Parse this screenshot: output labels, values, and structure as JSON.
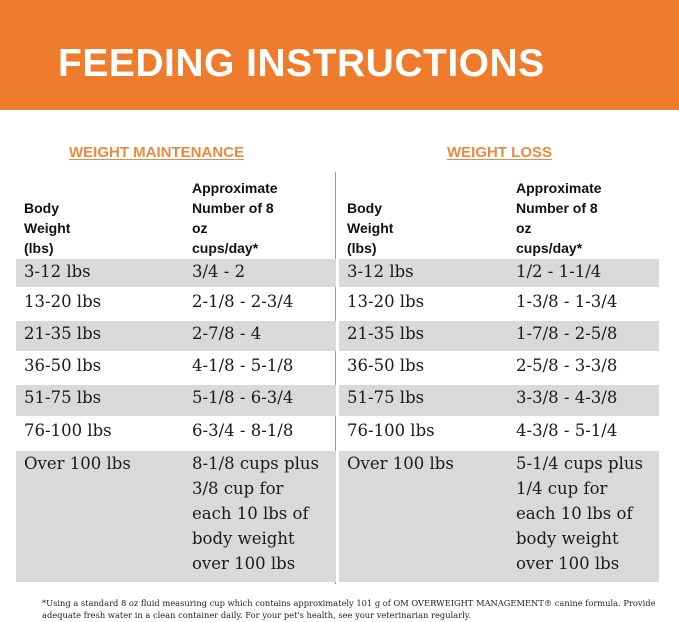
{
  "header": {
    "title": "FEEDING INSTRUCTIONS"
  },
  "colors": {
    "banner": "#EF7C2C",
    "section_title": "#E98A3F",
    "row_shade": "#d9d9d9"
  },
  "sections": [
    {
      "title": "WEIGHT MAINTENANCE",
      "col1_header": "Body Weight (lbs)",
      "col2_header": [
        "Approximate",
        "Number of 8 oz",
        "cups/day*"
      ],
      "rows": [
        {
          "weight": "3-12 lbs",
          "cups": [
            "3/4 - 2"
          ]
        },
        {
          "weight": "13-20 lbs",
          "cups": [
            "2-1/8 - 2-3/4"
          ]
        },
        {
          "weight": "21-35 lbs",
          "cups": [
            "2-7/8 - 4"
          ]
        },
        {
          "weight": "36-50 lbs",
          "cups": [
            "4-1/8 - 5-1/8"
          ]
        },
        {
          "weight": "51-75 lbs",
          "cups": [
            "5-1/8 - 6-3/4"
          ]
        },
        {
          "weight": "76-100 lbs",
          "cups": [
            "6-3/4 - 8-1/8"
          ]
        },
        {
          "weight": "Over 100 lbs",
          "cups": [
            "8-1/8 cups plus",
            "3/8 cup for",
            "each 10 lbs of",
            "body weight",
            "over 100 lbs"
          ]
        }
      ]
    },
    {
      "title": "WEIGHT LOSS",
      "col1_header": "Body Weight (lbs)",
      "col2_header": [
        "Approximate",
        "Number of 8 oz",
        "cups/day*"
      ],
      "rows": [
        {
          "weight": "3-12 lbs",
          "cups": [
            "1/2 - 1-1/4"
          ]
        },
        {
          "weight": "13-20 lbs",
          "cups": [
            "1-3/8 - 1-3/4"
          ]
        },
        {
          "weight": "21-35 lbs",
          "cups": [
            "1-7/8 - 2-5/8"
          ]
        },
        {
          "weight": "36-50 lbs",
          "cups": [
            "2-5/8 - 3-3/8"
          ]
        },
        {
          "weight": "51-75 lbs",
          "cups": [
            "3-3/8 - 4-3/8"
          ]
        },
        {
          "weight": "76-100 lbs",
          "cups": [
            "4-3/8 - 5-1/4"
          ]
        },
        {
          "weight": "Over 100 lbs",
          "cups": [
            "5-1/4 cups plus",
            "1/4 cup for",
            "each 10 lbs of",
            "body weight",
            "over 100 lbs"
          ]
        }
      ]
    }
  ],
  "footnote": "*Using a standard 8 oz fluid measuring cup which contains approximately 101 g of OM OVERWEIGHT MANAGEMENT® canine formula. Provide adequate fresh water in a clean container daily. For your pet's health, see your veterinarian regularly."
}
